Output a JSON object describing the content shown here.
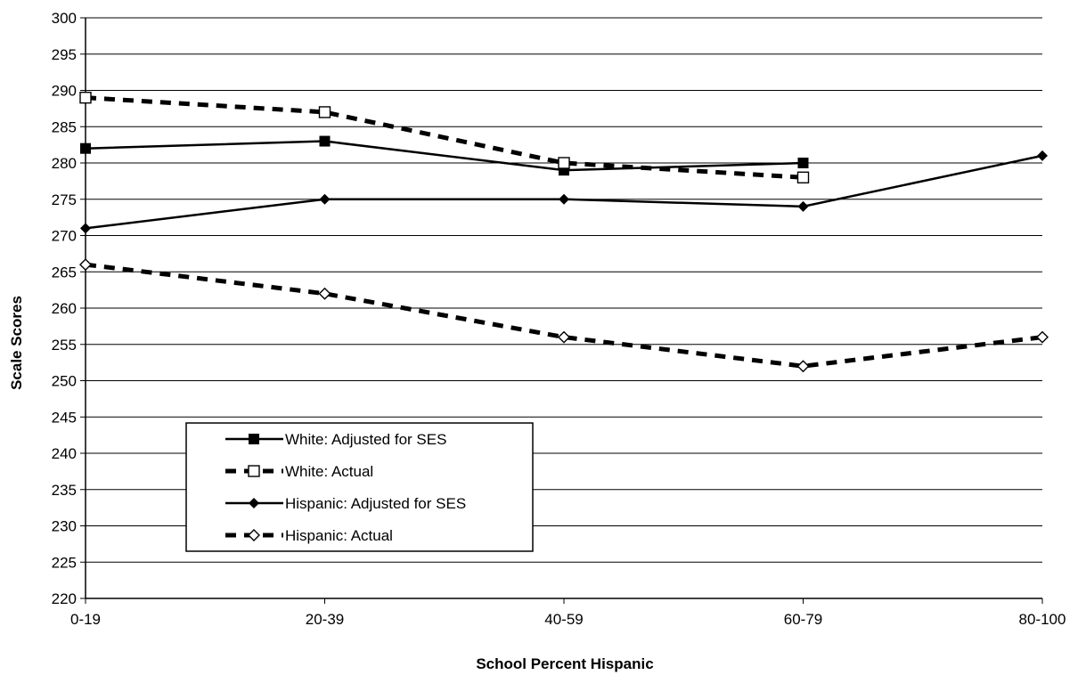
{
  "chart_data": {
    "type": "line",
    "title": "",
    "xlabel": "School Percent Hispanic",
    "ylabel": "Scale Scores",
    "categories": [
      "0-19",
      "20-39",
      "40-59",
      "60-79",
      "80-100"
    ],
    "ylim": [
      220,
      300
    ],
    "ytick_step": 5,
    "grid": "horizontal",
    "legend_position": "bottom-left",
    "series": [
      {
        "name": "White: Adjusted for SES",
        "values": [
          282,
          283,
          279,
          280,
          null
        ],
        "line": "solid",
        "marker": "filled-square"
      },
      {
        "name": "White: Actual",
        "values": [
          289,
          287,
          280,
          278,
          null
        ],
        "line": "dashed",
        "marker": "open-square"
      },
      {
        "name": "Hispanic: Adjusted for SES",
        "values": [
          271,
          275,
          275,
          274,
          281
        ],
        "line": "solid",
        "marker": "filled-diamond"
      },
      {
        "name": "Hispanic: Actual",
        "values": [
          266,
          262,
          256,
          252,
          256
        ],
        "line": "dashed",
        "marker": "open-diamond"
      }
    ]
  }
}
